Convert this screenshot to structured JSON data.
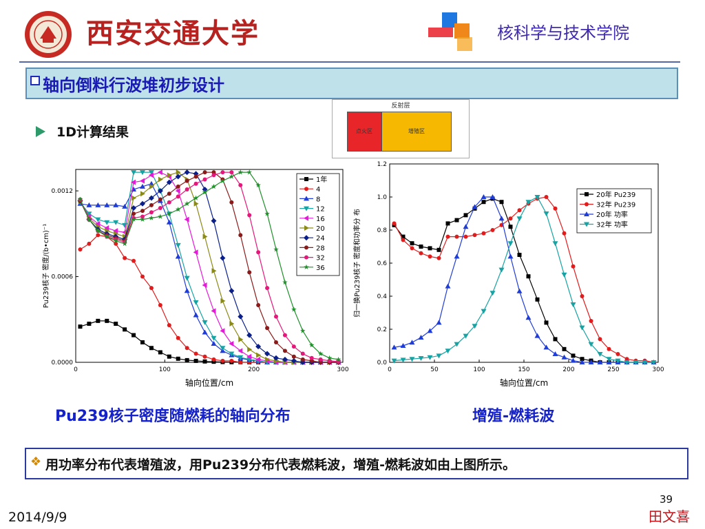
{
  "header": {
    "university_name": "西安交通大学",
    "college_name": "核科学与技术学院",
    "colors": {
      "university_red": "#b5221f",
      "college_blue": "#3f2ab0"
    }
  },
  "section": {
    "title": "轴向倒料行波堆初步设计",
    "bullet_icon": "square-bullet-icon"
  },
  "subsection": {
    "title": "1D计算结果",
    "bullet_icon": "arrow-bullet-icon"
  },
  "inset": {
    "top_label": "反射层",
    "zone_left": "点火区",
    "zone_right": "增殖区"
  },
  "captions": {
    "left": "Pu239核子密度随燃耗的轴向分布",
    "right": "增殖-燃耗波"
  },
  "note": {
    "icon": "star-bullet-icon",
    "text": "用功率分布代表增殖波，用Pu239分布代表燃耗波，增殖-燃耗波如由上图所示。"
  },
  "footer": {
    "page_number": "39",
    "author": "田文喜",
    "date": "2014/9/9"
  },
  "chart_data": [
    {
      "type": "line",
      "xlabel": "轴向位置/cm",
      "ylabel": "Pu239核子 密度/(b•cm)⁻¹",
      "xlim": [
        0,
        300
      ],
      "ylim": [
        0,
        0.00135
      ],
      "xticks": [
        "0",
        "100",
        "200",
        "300"
      ],
      "yticks": [
        "0.0000",
        "0.0006",
        "0.0012"
      ],
      "legend_position": "top-right",
      "series": [
        {
          "name": "1年",
          "color": "#000000",
          "marker": "square",
          "x": [
            5,
            15,
            25,
            35,
            45,
            55,
            65,
            75,
            85,
            95,
            105,
            115,
            125,
            135,
            145,
            155,
            165,
            175,
            185,
            195,
            205,
            215,
            225,
            235,
            245,
            255,
            265,
            275,
            285,
            295
          ],
          "y": [
            0.00025,
            0.00027,
            0.00029,
            0.00029,
            0.00027,
            0.00023,
            0.00019,
            0.00014,
            0.0001,
            7e-05,
            4e-05,
            2.5e-05,
            1.5e-05,
            1e-05,
            6e-06,
            4e-06,
            2e-06,
            1e-06,
            1e-06,
            0,
            0,
            0,
            0,
            0,
            0,
            0,
            0,
            0,
            0,
            0
          ]
        },
        {
          "name": "4",
          "color": "#e11c1c",
          "marker": "circle",
          "x": [
            5,
            15,
            25,
            35,
            45,
            55,
            65,
            75,
            85,
            95,
            105,
            115,
            125,
            135,
            145,
            155,
            165,
            175,
            185,
            195,
            205,
            215,
            225,
            235,
            245,
            255,
            265,
            275,
            285,
            295
          ],
          "y": [
            0.00079,
            0.00083,
            0.00089,
            0.00088,
            0.00083,
            0.00073,
            0.00071,
            0.0006,
            0.00052,
            0.0004,
            0.00026,
            0.00017,
            0.0001,
            6e-05,
            4e-05,
            2e-05,
            1e-05,
            1e-05,
            0,
            0,
            0,
            0,
            0,
            0,
            0,
            0,
            0,
            0,
            0,
            0
          ]
        },
        {
          "name": "8",
          "color": "#1f3cd6",
          "marker": "triangle-up",
          "x": [
            5,
            15,
            25,
            35,
            45,
            55,
            65,
            75,
            85,
            95,
            105,
            115,
            125,
            135,
            145,
            155,
            165,
            175,
            185,
            195,
            205,
            215,
            225,
            235,
            245,
            255,
            265,
            275,
            285,
            295
          ],
          "y": [
            0.00111,
            0.0011,
            0.0011,
            0.0011,
            0.0011,
            0.00109,
            0.00121,
            0.00123,
            0.00125,
            0.00113,
            0.00098,
            0.00074,
            0.0005,
            0.00033,
            0.00021,
            0.00013,
            8e-05,
            5e-05,
            3e-05,
            1.5e-05,
            1e-05,
            0,
            0,
            0,
            0,
            0,
            0,
            0,
            0,
            0
          ]
        },
        {
          "name": "12",
          "color": "#17a3a3",
          "marker": "triangle-down",
          "x": [
            5,
            15,
            25,
            35,
            45,
            55,
            65,
            75,
            85,
            95,
            105,
            115,
            125,
            135,
            145,
            155,
            165,
            175,
            185,
            195,
            205,
            215,
            225,
            235,
            245,
            255,
            265,
            275,
            285,
            295
          ],
          "y": [
            0.00112,
            0.00104,
            0.001,
            0.00098,
            0.00098,
            0.00096,
            0.00133,
            0.00133,
            0.00133,
            0.0012,
            0.00104,
            0.00082,
            0.00059,
            0.00042,
            0.00028,
            0.00017,
            0.0001,
            6e-05,
            3.5e-05,
            2e-05,
            1e-05,
            0,
            0,
            0,
            0,
            0,
            0,
            0,
            0,
            0
          ]
        },
        {
          "name": "16",
          "color": "#e41ad8",
          "marker": "triangle-left",
          "x": [
            5,
            15,
            25,
            35,
            45,
            55,
            65,
            75,
            85,
            95,
            105,
            115,
            125,
            135,
            145,
            155,
            165,
            175,
            185,
            195,
            205,
            215,
            225,
            235,
            245,
            255,
            265,
            275,
            285,
            295
          ],
          "y": [
            0.00113,
            0.00102,
            0.00097,
            0.00094,
            0.00092,
            0.00091,
            0.00126,
            0.00127,
            0.00131,
            0.00133,
            0.0013,
            0.0012,
            0.001,
            0.00077,
            0.00054,
            0.00036,
            0.00022,
            0.00013,
            8e-05,
            4e-05,
            2e-05,
            1e-05,
            0,
            0,
            0,
            0,
            0,
            0,
            0,
            0
          ]
        },
        {
          "name": "20",
          "color": "#8a8a16",
          "marker": "triangle-right",
          "x": [
            5,
            15,
            25,
            35,
            45,
            55,
            65,
            75,
            85,
            95,
            105,
            115,
            125,
            135,
            145,
            155,
            165,
            175,
            185,
            195,
            205,
            215,
            225,
            235,
            245,
            255,
            265,
            275,
            285,
            295
          ],
          "y": [
            0.00113,
            0.00101,
            0.00095,
            0.00092,
            0.0009,
            0.00088,
            0.00115,
            0.00118,
            0.00123,
            0.00128,
            0.00131,
            0.00133,
            0.00128,
            0.00111,
            0.00088,
            0.00064,
            0.00043,
            0.00027,
            0.00016,
            9e-05,
            5e-05,
            2e-05,
            1e-05,
            0,
            0,
            0,
            0,
            0,
            0,
            0
          ]
        },
        {
          "name": "24",
          "color": "#0a1f8a",
          "marker": "diamond",
          "x": [
            5,
            15,
            25,
            35,
            45,
            55,
            65,
            75,
            85,
            95,
            105,
            115,
            125,
            135,
            145,
            155,
            165,
            175,
            185,
            195,
            205,
            215,
            225,
            235,
            245,
            255,
            265,
            275,
            285,
            295
          ],
          "y": [
            0.00113,
            0.001,
            0.00093,
            0.0009,
            0.00088,
            0.00086,
            0.00108,
            0.00111,
            0.00115,
            0.0012,
            0.00126,
            0.0013,
            0.00133,
            0.00132,
            0.00121,
            0.00099,
            0.00073,
            0.0005,
            0.00032,
            0.00019,
            0.00011,
            6e-05,
            3e-05,
            2e-05,
            1e-05,
            0,
            0,
            0,
            0,
            0
          ]
        },
        {
          "name": "28",
          "color": "#8b1a1a",
          "marker": "circle",
          "x": [
            5,
            15,
            25,
            35,
            45,
            55,
            65,
            75,
            85,
            95,
            105,
            115,
            125,
            135,
            145,
            155,
            165,
            175,
            185,
            195,
            205,
            215,
            225,
            235,
            245,
            255,
            265,
            275,
            285,
            295
          ],
          "y": [
            0.00113,
            0.001,
            0.00092,
            0.00089,
            0.00087,
            0.00085,
            0.00104,
            0.00106,
            0.0011,
            0.00114,
            0.00118,
            0.00123,
            0.00127,
            0.0013,
            0.00133,
            0.00133,
            0.00128,
            0.00112,
            0.00089,
            0.00063,
            0.0004,
            0.00024,
            0.00014,
            8e-05,
            4e-05,
            2e-05,
            1e-05,
            0,
            0,
            0
          ]
        },
        {
          "name": "32",
          "color": "#e4187a",
          "marker": "circle",
          "x": [
            5,
            15,
            25,
            35,
            45,
            55,
            65,
            75,
            85,
            95,
            105,
            115,
            125,
            135,
            145,
            155,
            165,
            175,
            185,
            195,
            205,
            215,
            225,
            235,
            245,
            255,
            265,
            275,
            285,
            295
          ],
          "y": [
            0.00114,
            0.001,
            0.00092,
            0.00088,
            0.00086,
            0.00084,
            0.00101,
            0.00102,
            0.00105,
            0.00108,
            0.00112,
            0.00116,
            0.00121,
            0.00125,
            0.00128,
            0.00131,
            0.00133,
            0.00133,
            0.00124,
            0.00103,
            0.00077,
            0.00052,
            0.00032,
            0.00019,
            0.00011,
            6e-05,
            3e-05,
            2e-05,
            1e-05,
            5e-06
          ]
        },
        {
          "name": "36",
          "color": "#1f8f2a",
          "marker": "star",
          "x": [
            5,
            15,
            25,
            35,
            45,
            55,
            65,
            75,
            85,
            95,
            105,
            115,
            125,
            135,
            145,
            155,
            165,
            175,
            185,
            195,
            205,
            215,
            225,
            235,
            245,
            255,
            265,
            275,
            285,
            295
          ],
          "y": [
            0.00114,
            0.001,
            0.00092,
            0.00088,
            0.00085,
            0.00083,
            0.001,
            0.001,
            0.00101,
            0.00102,
            0.00104,
            0.00107,
            0.00111,
            0.00115,
            0.00119,
            0.00123,
            0.00127,
            0.0013,
            0.00133,
            0.00133,
            0.00124,
            0.00104,
            0.00079,
            0.00056,
            0.00037,
            0.00022,
            0.00012,
            6e-05,
            3e-05,
            2e-05
          ]
        }
      ]
    },
    {
      "type": "line",
      "xlabel": "轴向位置/cm",
      "ylabel": "归一换Pu239核子 密度和功率分 布",
      "xlim": [
        0,
        300
      ],
      "ylim": [
        0,
        1.2
      ],
      "xticks": [
        "0",
        "50",
        "100",
        "150",
        "200",
        "250",
        "300"
      ],
      "yticks": [
        "0.0",
        "0.2",
        "0.4",
        "0.6",
        "0.8",
        "1.0",
        "1.2"
      ],
      "legend_position": "top-right",
      "series": [
        {
          "name": "20年 Pu239",
          "color": "#000000",
          "marker": "square",
          "x": [
            5,
            15,
            25,
            35,
            45,
            55,
            65,
            75,
            85,
            95,
            105,
            115,
            125,
            135,
            145,
            155,
            165,
            175,
            185,
            195,
            205,
            215,
            225,
            235,
            245,
            255,
            265,
            275,
            285,
            295
          ],
          "y": [
            0.83,
            0.76,
            0.72,
            0.7,
            0.69,
            0.68,
            0.84,
            0.86,
            0.89,
            0.93,
            0.97,
            0.99,
            0.97,
            0.82,
            0.65,
            0.52,
            0.38,
            0.24,
            0.14,
            0.08,
            0.04,
            0.02,
            0.01,
            0,
            0,
            0,
            0,
            0,
            0,
            0
          ]
        },
        {
          "name": "32年 Pu239",
          "color": "#e11c1c",
          "marker": "circle",
          "x": [
            5,
            15,
            25,
            35,
            45,
            55,
            65,
            75,
            85,
            95,
            105,
            115,
            125,
            135,
            145,
            155,
            165,
            175,
            185,
            195,
            205,
            215,
            225,
            235,
            245,
            255,
            265,
            275,
            285,
            295
          ],
          "y": [
            0.84,
            0.74,
            0.69,
            0.66,
            0.64,
            0.63,
            0.76,
            0.76,
            0.76,
            0.77,
            0.78,
            0.8,
            0.83,
            0.87,
            0.92,
            0.96,
            0.99,
            1.0,
            0.93,
            0.78,
            0.58,
            0.4,
            0.25,
            0.14,
            0.08,
            0.05,
            0.02,
            0.01,
            0.01,
            0
          ]
        },
        {
          "name": "20年  功率",
          "color": "#1f3cd6",
          "marker": "triangle-up",
          "x": [
            5,
            15,
            25,
            35,
            45,
            55,
            65,
            75,
            85,
            95,
            105,
            115,
            125,
            135,
            145,
            155,
            165,
            175,
            185,
            195,
            205,
            215,
            225,
            235,
            245,
            255,
            265,
            275,
            285,
            295
          ],
          "y": [
            0.09,
            0.1,
            0.12,
            0.15,
            0.19,
            0.24,
            0.46,
            0.64,
            0.82,
            0.94,
            1.0,
            1.0,
            0.87,
            0.64,
            0.43,
            0.27,
            0.16,
            0.09,
            0.05,
            0.03,
            0.01,
            0,
            0,
            0,
            0,
            0,
            0,
            0,
            0,
            0
          ]
        },
        {
          "name": "32年  功率",
          "color": "#17a3a3",
          "marker": "triangle-down",
          "x": [
            5,
            15,
            25,
            35,
            45,
            55,
            65,
            75,
            85,
            95,
            105,
            115,
            125,
            135,
            145,
            155,
            165,
            175,
            185,
            195,
            205,
            215,
            225,
            235,
            245,
            255,
            265,
            275,
            285,
            295
          ],
          "y": [
            0.01,
            0.015,
            0.02,
            0.025,
            0.03,
            0.04,
            0.07,
            0.11,
            0.16,
            0.22,
            0.31,
            0.42,
            0.56,
            0.72,
            0.87,
            0.97,
            1.0,
            0.9,
            0.72,
            0.53,
            0.35,
            0.21,
            0.11,
            0.05,
            0.02,
            0.01,
            0,
            0,
            0,
            0
          ]
        }
      ]
    }
  ]
}
